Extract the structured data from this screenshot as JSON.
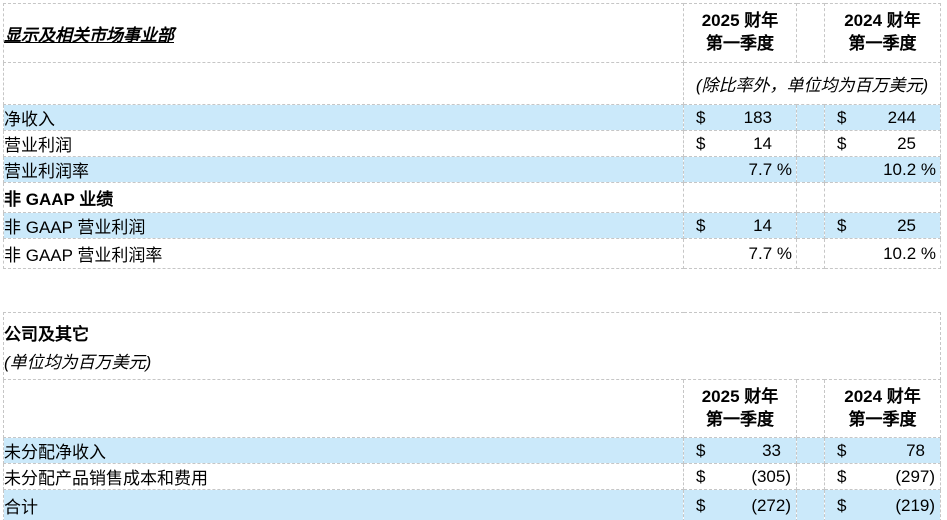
{
  "colors": {
    "row_highlight": "#cbe9fa",
    "border": "#c6c6c6"
  },
  "table1": {
    "title": "显示及相关市场事业部",
    "headers": {
      "y2025": {
        "l1": "2025 财年",
        "l2": "第一季度"
      },
      "y2024": {
        "l1": "2024 财年",
        "l2": "第一季度"
      }
    },
    "note": "(除比率外，单位均为百万美元)",
    "rows": [
      {
        "label": "净收入",
        "cur1": "$",
        "v2025": "183",
        "cur2": "$",
        "v2024": "244"
      },
      {
        "label": "营业利润",
        "cur1": "$",
        "v2025": "14",
        "cur2": "$",
        "v2024": "25"
      },
      {
        "label": "营业利润率",
        "cur1": "",
        "v2025": "7.7 %",
        "cur2": "",
        "v2024": "10.2 %"
      },
      {
        "label": "非 GAAP 业绩",
        "cur1": "",
        "v2025": "",
        "cur2": "",
        "v2024": ""
      },
      {
        "label": "非 GAAP 营业利润",
        "cur1": "$",
        "v2025": "14",
        "cur2": "$",
        "v2024": "25"
      },
      {
        "label": "非 GAAP 营业利润率",
        "cur1": "",
        "v2025": "7.7 %",
        "cur2": "",
        "v2024": "10.2 %"
      }
    ]
  },
  "table2": {
    "title": "公司及其它",
    "note": "(单位均为百万美元)",
    "headers": {
      "y2025": {
        "l1": "2025 财年",
        "l2": "第一季度"
      },
      "y2024": {
        "l1": "2024 财年",
        "l2": "第一季度"
      }
    },
    "rows": [
      {
        "label": "未分配净收入",
        "cur1": "$",
        "v2025": "33",
        "cur2": "$",
        "v2024": "78"
      },
      {
        "label": "未分配产品销售成本和费用",
        "cur1": "$",
        "v2025": "(305)",
        "cur2": "$",
        "v2024": "(297)"
      },
      {
        "label": "合计",
        "cur1": "$",
        "v2025": "(272)",
        "cur2": "$",
        "v2024": "(219)"
      }
    ]
  }
}
